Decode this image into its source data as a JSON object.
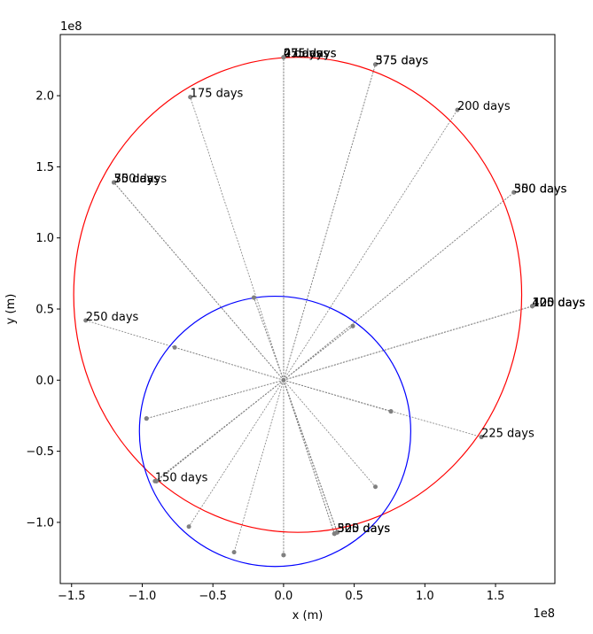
{
  "chart_data": {
    "type": "line",
    "title": "",
    "xlabel": "x (m)",
    "ylabel": "y (m)",
    "x_offset_text": "1e8",
    "y_offset_text": "1e8",
    "xlim": [
      -1.58,
      1.92
    ],
    "ylim": [
      -1.43,
      2.43
    ],
    "x_ticks": [
      -1.5,
      -1.0,
      -0.5,
      0.0,
      0.5,
      1.0,
      1.5
    ],
    "x_tick_labels": [
      "−1.5",
      "−1.0",
      "−0.5",
      "0.0",
      "0.5",
      "1.0",
      "1.5"
    ],
    "y_ticks": [
      -1.0,
      -0.5,
      0.0,
      0.5,
      1.0,
      1.5,
      2.0
    ],
    "y_tick_labels": [
      "−1.0",
      "−0.5",
      "0.0",
      "0.5",
      "1.0",
      "1.5",
      "2.0"
    ],
    "grid": false,
    "colors": {
      "outer_orbit": "#ff0000",
      "inner_orbit": "#0000ff",
      "lines": "#808080",
      "points": "#808080"
    },
    "orbits": [
      {
        "color": "#ff0000",
        "center": [
          0.1,
          0.6
        ],
        "rx": 1.585,
        "ry": 1.67
      },
      {
        "color": "#0000ff",
        "center": [
          -0.06,
          -0.36
        ],
        "rx": 0.96,
        "ry": 0.95
      }
    ],
    "markers": [
      {
        "label": "0 days",
        "outer": [
          0.0,
          2.27
        ],
        "inner": [
          -0.21,
          0.58
        ]
      },
      {
        "label": "25 days",
        "outer": [
          0.0,
          2.27
        ],
        "inner": [
          -0.21,
          0.58
        ]
      },
      {
        "label": "50 days",
        "outer": [
          -1.2,
          1.39
        ],
        "inner": [
          -0.97,
          -0.27
        ]
      },
      {
        "label": "75 days",
        "outer": [
          -1.2,
          1.39
        ],
        "inner": [
          -0.97,
          -0.27
        ]
      },
      {
        "label": "100 days",
        "outer": [
          1.76,
          0.52
        ],
        "inner": [
          0.76,
          -0.22
        ]
      },
      {
        "label": "125 days",
        "outer": [
          1.76,
          0.52
        ],
        "inner": [
          0.76,
          -0.22
        ]
      },
      {
        "label": "150 days",
        "outer": [
          -0.91,
          -0.71
        ],
        "inner": [
          -0.9,
          -0.71
        ]
      },
      {
        "label": "175 days",
        "outer": [
          -0.66,
          1.99
        ],
        "inner": [
          0.65,
          -0.75
        ]
      },
      {
        "label": "200 days",
        "outer": [
          1.23,
          1.9
        ],
        "inner": [
          -0.35,
          -1.21
        ]
      },
      {
        "label": "225 days",
        "outer": [
          1.4,
          -0.4
        ],
        "inner": [
          -0.77,
          0.23
        ]
      },
      {
        "label": "250 days",
        "outer": [
          -1.4,
          0.42
        ],
        "inner": [
          -0.67,
          -1.03
        ]
      },
      {
        "label": "275 days",
        "outer": [
          0.0,
          2.27
        ],
        "inner": [
          0.0,
          -1.23
        ]
      },
      {
        "label": "300 days",
        "outer": [
          1.63,
          1.32
        ],
        "inner": [
          -0.9,
          -0.71
        ]
      },
      {
        "label": "325 days",
        "outer": [
          0.38,
          -1.07
        ],
        "inner": [
          0.38,
          -1.07
        ]
      },
      {
        "label": "350 days",
        "outer": [
          -1.2,
          1.39
        ],
        "inner": [
          0.36,
          -1.08
        ]
      },
      {
        "label": "375 days",
        "outer": [
          0.65,
          2.22
        ],
        "inner": [
          0.36,
          -1.08
        ]
      },
      {
        "label": "400 days",
        "outer": [
          1.76,
          0.52
        ],
        "inner": [
          0.49,
          0.38
        ]
      },
      {
        "label": "425 days",
        "outer": [
          1.76,
          0.52
        ],
        "inner": [
          0.49,
          0.38
        ]
      },
      {
        "label": "475 days",
        "outer": [
          0.0,
          2.27
        ],
        "inner": [
          0.0,
          -1.23
        ]
      },
      {
        "label": "500 days",
        "outer": [
          0.38,
          -1.07
        ],
        "inner": [
          0.38,
          -1.07
        ]
      },
      {
        "label": "525 days",
        "outer": [
          0.38,
          -1.07
        ],
        "inner": [
          0.38,
          -1.07
        ]
      },
      {
        "label": "550 days",
        "outer": [
          1.63,
          1.32
        ],
        "inner": [
          -0.9,
          -0.71
        ]
      },
      {
        "label": "575 days",
        "outer": [
          0.65,
          2.22
        ],
        "inner": [
          0.36,
          -1.08
        ]
      }
    ]
  }
}
